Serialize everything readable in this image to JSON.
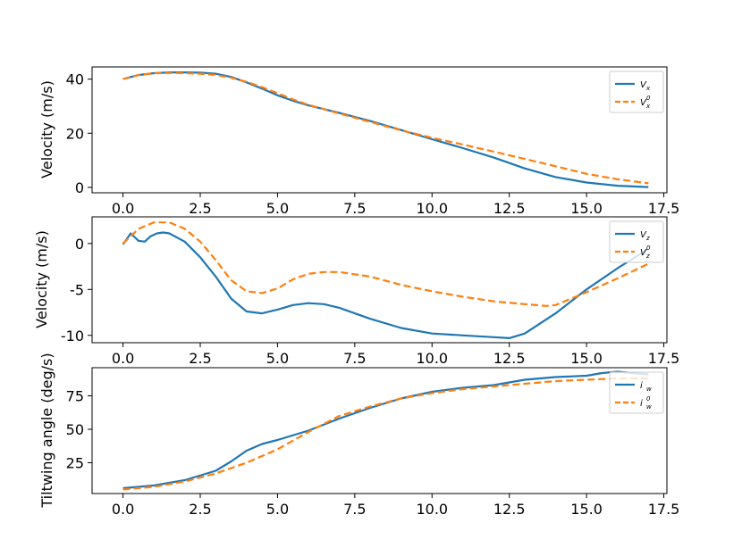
{
  "colors": {
    "actual": "#1f77b4",
    "reference": "#ff7f0e"
  },
  "chart_data": [
    {
      "type": "line",
      "ylabel": "Velocity (m/s)",
      "xlim": [
        -1,
        17.6
      ],
      "ylim": [
        -2,
        44.5
      ],
      "xticks": [
        0.0,
        2.5,
        5.0,
        7.5,
        10.0,
        12.5,
        15.0,
        17.5
      ],
      "xtick_labels": [
        "0.0",
        "2.5",
        "5.0",
        "7.5",
        "10.0",
        "12.5",
        "15.0",
        "17.5"
      ],
      "yticks": [
        0,
        20,
        40
      ],
      "ytick_labels": [
        "0",
        "20",
        "40"
      ],
      "legend": {
        "placement": "top-right",
        "entries": [
          {
            "base": "V",
            "sub": "x",
            "sup": ""
          },
          {
            "base": "V",
            "sub": "x",
            "sup": "0"
          }
        ]
      },
      "series": [
        {
          "style": "solid",
          "color_key": "actual",
          "x": [
            0,
            0.5,
            1,
            1.5,
            2,
            2.5,
            3,
            3.5,
            4,
            4.5,
            5,
            5.5,
            6,
            7,
            8,
            9,
            10,
            11,
            12,
            13,
            14,
            15,
            16,
            17
          ],
          "y": [
            40,
            41.5,
            42.2,
            42.5,
            42.5,
            42.4,
            42,
            40.8,
            38.8,
            36.5,
            34,
            32,
            30.3,
            27.5,
            24.5,
            21.2,
            17.8,
            14.5,
            11,
            7,
            3.8,
            1.8,
            0.6,
            0.1
          ]
        },
        {
          "style": "dashed",
          "color_key": "reference",
          "x": [
            0,
            0.5,
            1,
            1.5,
            2,
            2.5,
            3,
            3.5,
            4,
            4.5,
            5,
            5.5,
            6,
            7,
            8,
            9,
            10,
            11,
            12,
            13,
            14,
            15,
            16,
            17
          ],
          "y": [
            40,
            41.5,
            42.2,
            42.3,
            42.2,
            42,
            41.5,
            40.5,
            39,
            37,
            34.8,
            32.5,
            30.5,
            27.3,
            24.2,
            21.1,
            18.3,
            15.8,
            13.2,
            10.5,
            7.8,
            5,
            3,
            1.5
          ]
        }
      ]
    },
    {
      "type": "line",
      "ylabel": "Velocity (m/s)",
      "xlim": [
        -1,
        17.6
      ],
      "ylim": [
        -10.8,
        2.9
      ],
      "xticks": [
        0.0,
        2.5,
        5.0,
        7.5,
        10.0,
        12.5,
        15.0,
        17.5
      ],
      "xtick_labels": [
        "0.0",
        "2.5",
        "5.0",
        "7.5",
        "10.0",
        "12.5",
        "15.0",
        "17.5"
      ],
      "yticks": [
        0,
        -5,
        -10
      ],
      "ytick_labels": [
        "0",
        "-5",
        "-10"
      ],
      "legend": {
        "placement": "top-right",
        "entries": [
          {
            "base": "V",
            "sub": "z",
            "sup": ""
          },
          {
            "base": "V",
            "sub": "z",
            "sup": "0"
          }
        ]
      },
      "series": [
        {
          "style": "solid",
          "color_key": "actual",
          "x": [
            0,
            0.25,
            0.5,
            0.7,
            0.9,
            1.1,
            1.3,
            1.5,
            2,
            2.5,
            3,
            3.5,
            4,
            4.5,
            5,
            5.5,
            6,
            6.5,
            7,
            8,
            9,
            10,
            11,
            12,
            12.5,
            13,
            14,
            15,
            16,
            17
          ],
          "y": [
            -0.1,
            1.1,
            0.3,
            0.2,
            0.8,
            1.1,
            1.2,
            1.1,
            0.2,
            -1.5,
            -3.6,
            -6,
            -7.4,
            -7.6,
            -7.2,
            -6.7,
            -6.5,
            -6.6,
            -7,
            -8.2,
            -9.2,
            -9.8,
            -10,
            -10.2,
            -10.3,
            -9.8,
            -7.6,
            -5,
            -2.7,
            -0.6
          ]
        },
        {
          "style": "dashed",
          "color_key": "reference",
          "x": [
            0,
            0.5,
            1,
            1.5,
            2,
            2.5,
            3,
            3.5,
            4,
            4.5,
            5,
            5.5,
            6,
            6.5,
            7,
            8,
            9,
            10,
            11,
            12,
            13,
            13.7,
            14,
            15,
            16,
            17
          ],
          "y": [
            0,
            1.6,
            2.3,
            2.3,
            1.6,
            0.2,
            -1.8,
            -4,
            -5.2,
            -5.4,
            -4.9,
            -3.9,
            -3.3,
            -3.1,
            -3.1,
            -3.6,
            -4.5,
            -5.2,
            -5.8,
            -6.3,
            -6.6,
            -6.8,
            -6.7,
            -5.3,
            -3.8,
            -2.2
          ]
        }
      ]
    },
    {
      "type": "line",
      "ylabel": "Tiltwing angle (deg/s)",
      "xlim": [
        -1,
        17.6
      ],
      "ylim": [
        2,
        96
      ],
      "xticks": [
        0.0,
        2.5,
        5.0,
        7.5,
        10.0,
        12.5,
        15.0,
        17.5
      ],
      "xtick_labels": [
        "0.0",
        "2.5",
        "5.0",
        "7.5",
        "10.0",
        "12.5",
        "15.0",
        "17.5"
      ],
      "yticks": [
        25,
        50,
        75
      ],
      "ytick_labels": [
        "25",
        "50",
        "75"
      ],
      "legend": {
        "placement": "top-right",
        "entries": [
          {
            "base": "i",
            "sub": "w",
            "sup": ""
          },
          {
            "base": "i",
            "sub": "w",
            "sup": "0"
          }
        ]
      },
      "series": [
        {
          "style": "solid",
          "color_key": "actual",
          "x": [
            0,
            1,
            2,
            3,
            3.5,
            4,
            4.5,
            5,
            6,
            7,
            8,
            9,
            10,
            11,
            12,
            13,
            14,
            15,
            15.5,
            16,
            16.5,
            17
          ],
          "y": [
            6,
            8,
            12,
            19,
            26,
            34,
            39,
            42,
            49,
            58,
            66,
            73,
            78,
            81,
            83,
            87,
            89,
            90,
            92,
            93,
            92,
            91
          ]
        },
        {
          "style": "dashed",
          "color_key": "reference",
          "x": [
            0,
            1,
            2,
            3,
            4,
            5,
            6,
            7,
            8,
            9,
            10,
            11,
            12,
            13,
            14,
            15,
            16,
            17
          ],
          "y": [
            5,
            7,
            11,
            17,
            25,
            35,
            48,
            60,
            67,
            73,
            77,
            80,
            82,
            84,
            86,
            87,
            88,
            88
          ]
        }
      ]
    }
  ]
}
